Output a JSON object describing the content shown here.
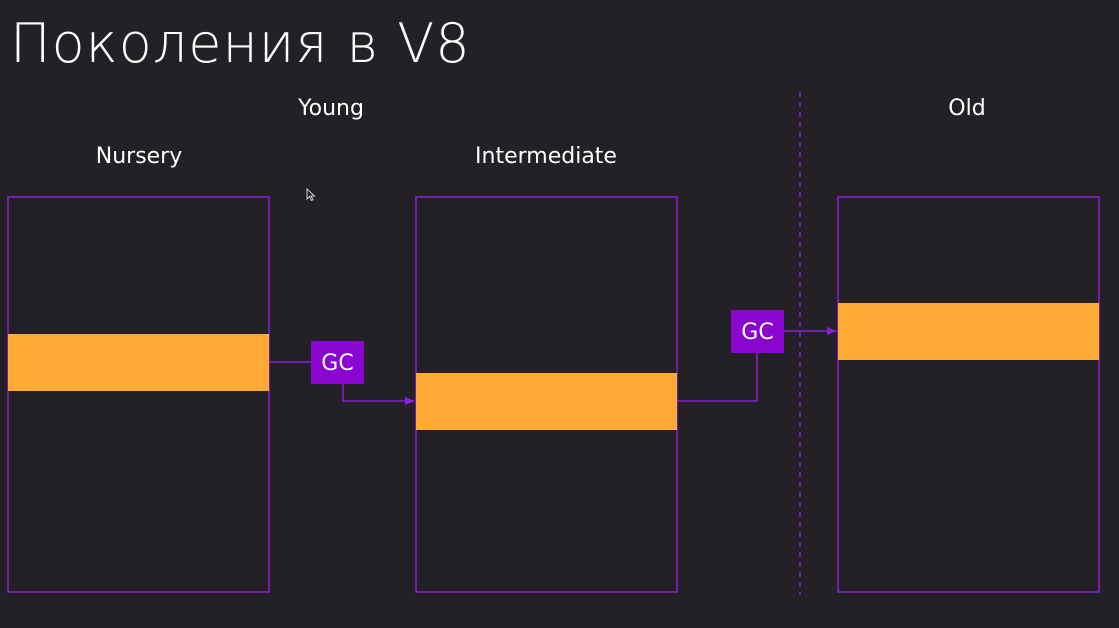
{
  "title": "Поколения в V8",
  "labels": {
    "young": "Young",
    "old": "Old",
    "nursery": "Nursery",
    "intermediate": "Intermediate"
  },
  "gc_boxes": [
    {
      "label": "GC"
    },
    {
      "label": "GC"
    }
  ],
  "colors": {
    "background": "#242126",
    "border": "#8a1fd6",
    "block": "#ffaa33",
    "gc_box": "#8a05d0",
    "text": "#ffffff"
  }
}
